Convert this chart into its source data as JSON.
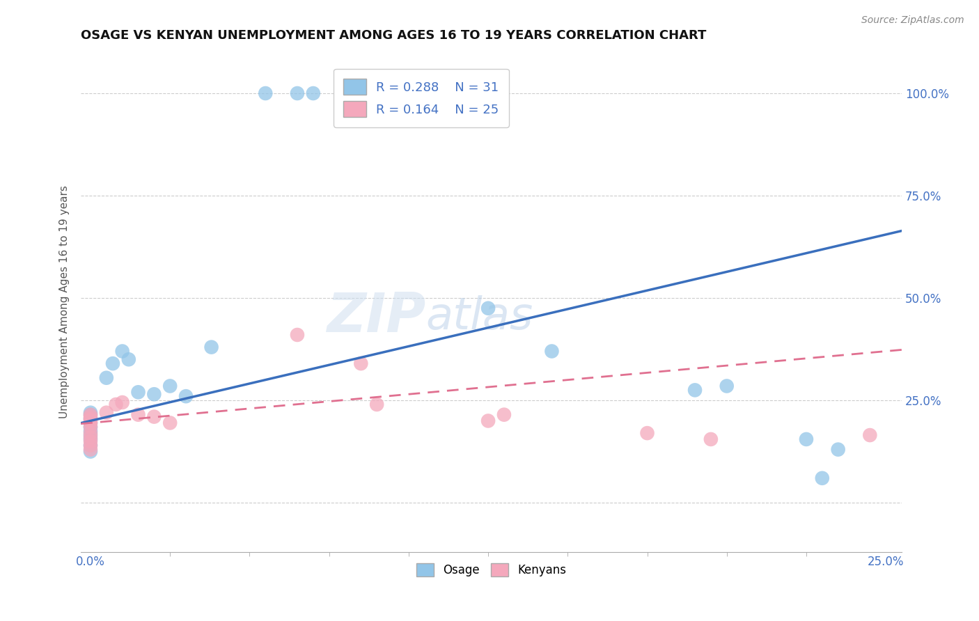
{
  "title": "OSAGE VS KENYAN UNEMPLOYMENT AMONG AGES 16 TO 19 YEARS CORRELATION CHART",
  "source": "Source: ZipAtlas.com",
  "ylabel": "Unemployment Among Ages 16 to 19 years",
  "watermark_zip": "ZIP",
  "watermark_atlas": "atlas",
  "legend_r1": "R = 0.288",
  "legend_n1": "N = 31",
  "legend_r2": "R = 0.164",
  "legend_n2": "N = 25",
  "osage_color": "#92c5e8",
  "kenyan_color": "#f4a8bc",
  "osage_line_color": "#3a6fbd",
  "kenyan_line_color": "#e07090",
  "osage_line_x0": 0.0,
  "osage_line_y0": 0.2,
  "osage_line_x1": 0.25,
  "osage_line_y1": 0.655,
  "kenyan_line_x0": 0.0,
  "kenyan_line_y0": 0.195,
  "kenyan_line_x1": 0.25,
  "kenyan_line_y1": 0.37,
  "xlim": [
    -0.003,
    0.255
  ],
  "ylim": [
    -0.12,
    1.1
  ],
  "osage_x": [
    0.0,
    0.0,
    0.0,
    0.0,
    0.0,
    0.0,
    0.0,
    0.0,
    0.0,
    0.0,
    0.005,
    0.007,
    0.01,
    0.012,
    0.015,
    0.02,
    0.025,
    0.03,
    0.038,
    0.055,
    0.065,
    0.07,
    0.11,
    0.12,
    0.125,
    0.145,
    0.19,
    0.2,
    0.225,
    0.235,
    0.23
  ],
  "osage_y": [
    0.205,
    0.215,
    0.22,
    0.195,
    0.185,
    0.175,
    0.165,
    0.155,
    0.14,
    0.125,
    0.305,
    0.34,
    0.37,
    0.35,
    0.27,
    0.265,
    0.285,
    0.26,
    0.38,
    1.0,
    1.0,
    1.0,
    1.0,
    1.0,
    0.475,
    0.37,
    0.275,
    0.285,
    0.155,
    0.13,
    0.06
  ],
  "kenyan_x": [
    0.0,
    0.0,
    0.0,
    0.0,
    0.0,
    0.0,
    0.0,
    0.0,
    0.0,
    0.0,
    0.0,
    0.005,
    0.008,
    0.01,
    0.015,
    0.02,
    0.025,
    0.065,
    0.085,
    0.09,
    0.125,
    0.13,
    0.175,
    0.195,
    0.245
  ],
  "kenyan_y": [
    0.2,
    0.21,
    0.215,
    0.205,
    0.195,
    0.185,
    0.17,
    0.16,
    0.15,
    0.14,
    0.13,
    0.22,
    0.24,
    0.245,
    0.215,
    0.21,
    0.195,
    0.41,
    0.34,
    0.24,
    0.2,
    0.215,
    0.17,
    0.155,
    0.165
  ]
}
